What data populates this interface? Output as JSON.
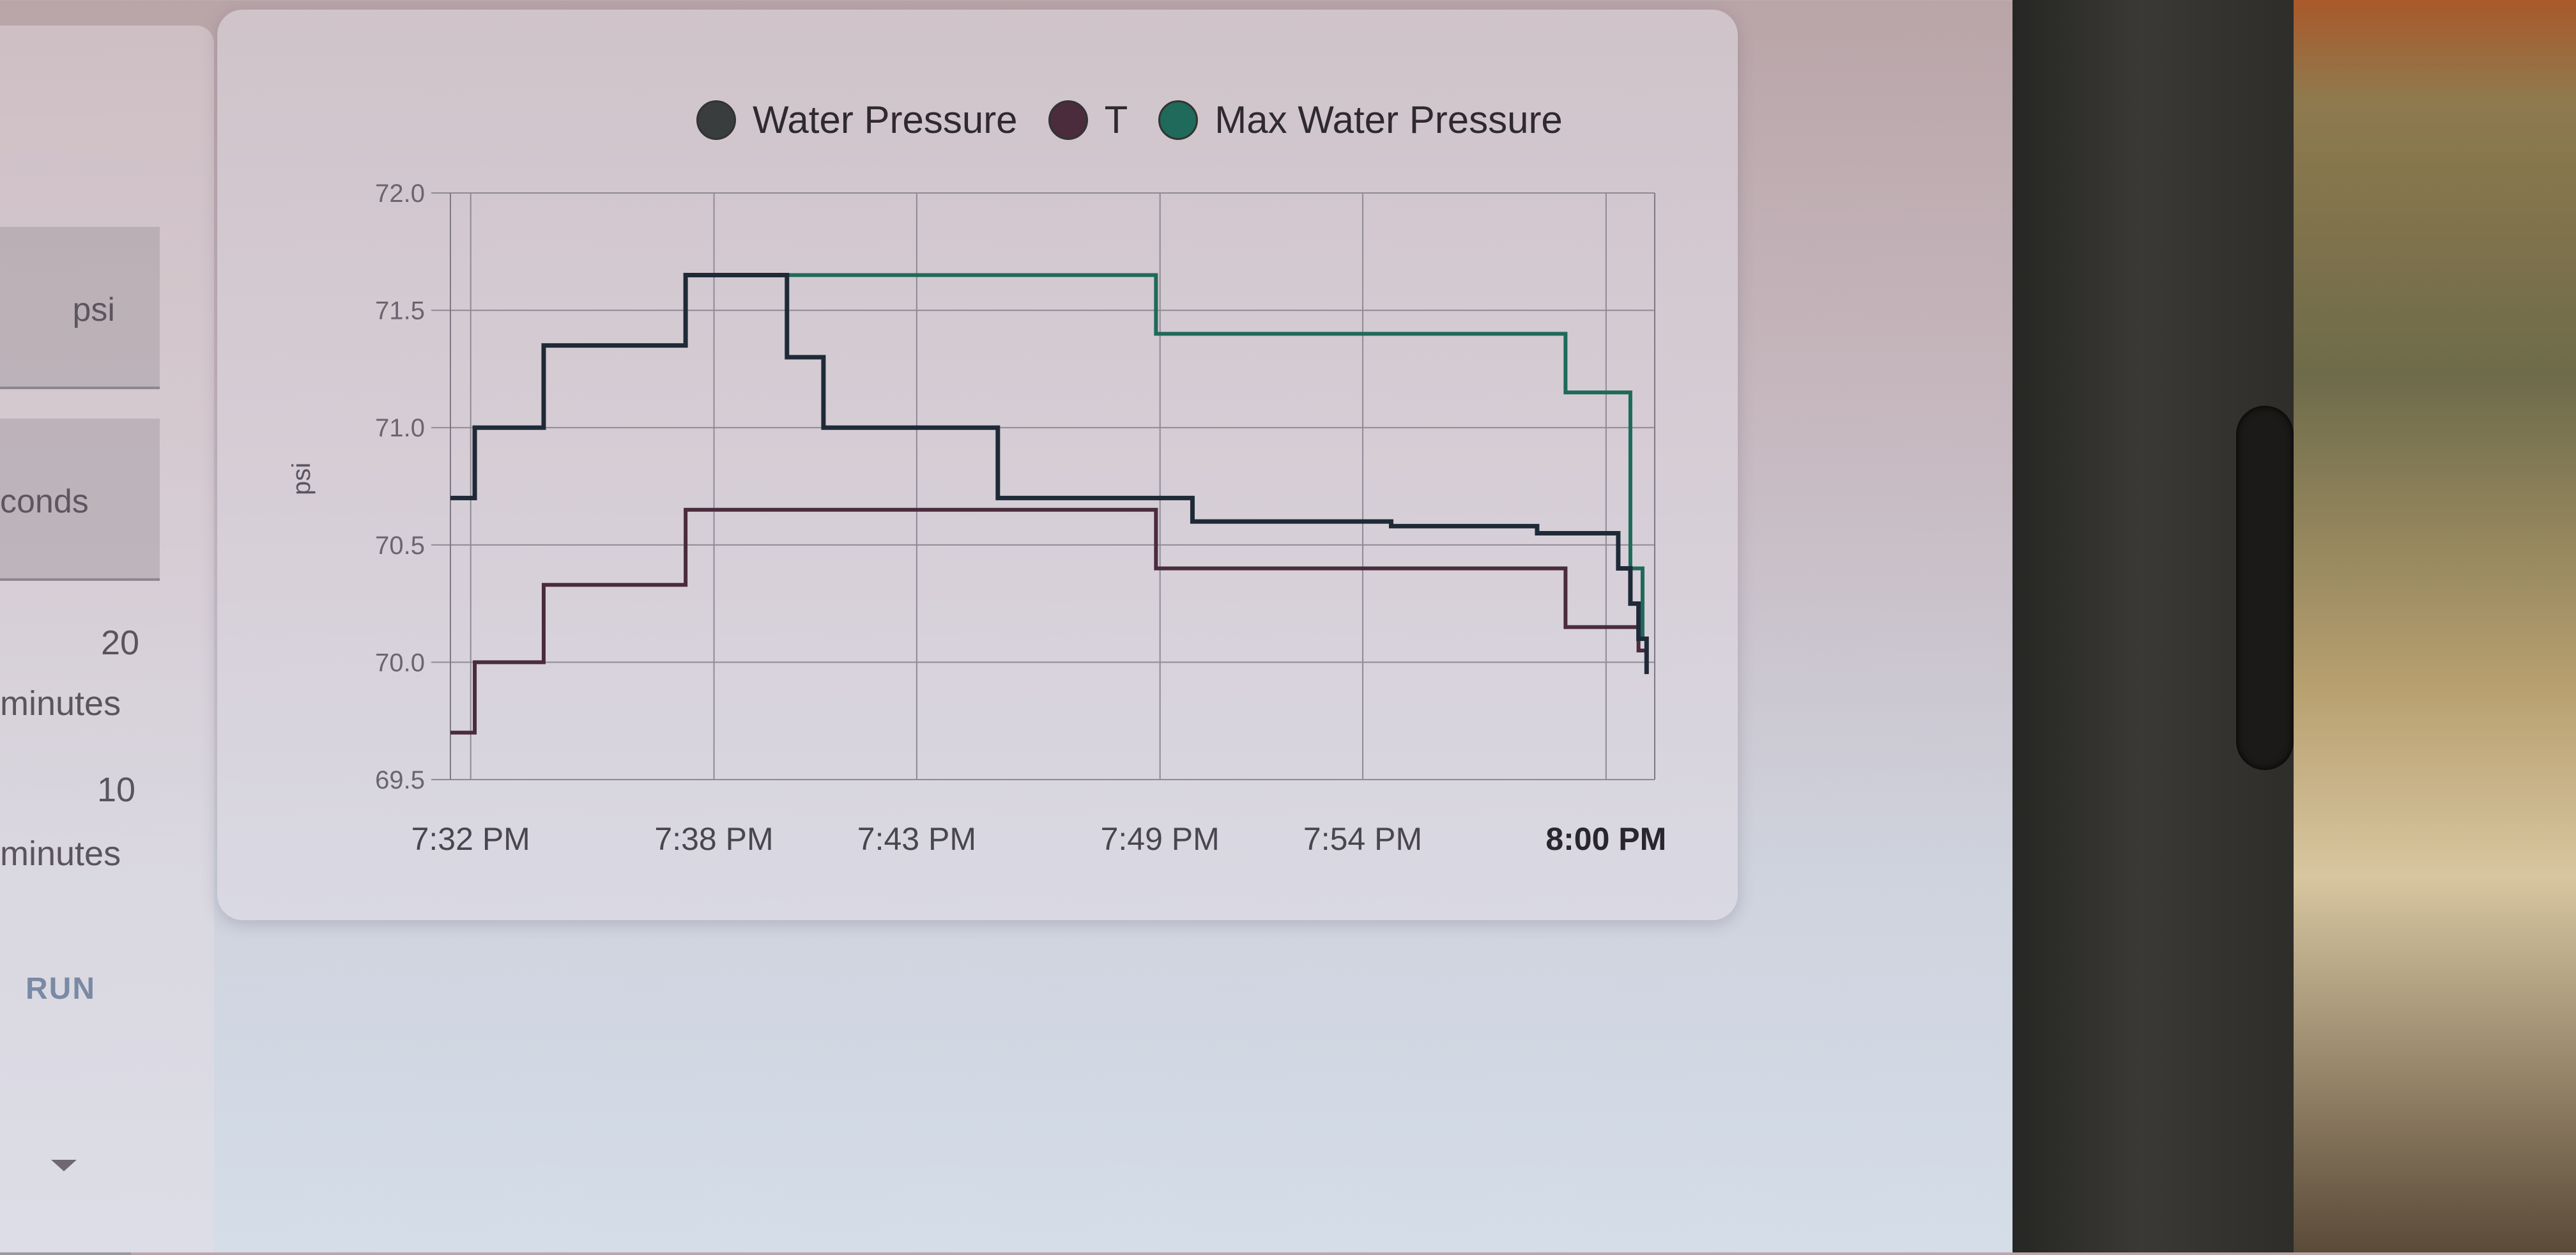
{
  "sidebar": {
    "unit_label": "psi",
    "interval_label": "conds",
    "option_a_value": "20",
    "option_a_unit": "minutes",
    "option_b_value": "10",
    "option_b_unit": "minutes",
    "run_button": "RUN"
  },
  "colors": {
    "water_pressure": "#1f2a38",
    "t": "#4a2c3c",
    "max_water_pressure": "#1f6a5a"
  },
  "chart_data": {
    "type": "line",
    "title": "",
    "xlabel": "",
    "ylabel": "psi",
    "ylim": [
      69.5,
      72.0
    ],
    "yticks": [
      "72.0",
      "71.5",
      "71.0",
      "70.5",
      "70.0",
      "69.5"
    ],
    "xticks": [
      "7:32 PM",
      "7:38 PM",
      "7:43 PM",
      "7:49 PM",
      "7:54 PM",
      "8:00 PM"
    ],
    "xticks_minutes": [
      32,
      38,
      43,
      49,
      54,
      60
    ],
    "xlim_minutes": [
      31.5,
      61.2
    ],
    "series": [
      {
        "name": "Water Pressure",
        "step": true,
        "points": [
          [
            31.5,
            70.7
          ],
          [
            32.1,
            71.0
          ],
          [
            33.8,
            71.35
          ],
          [
            37.3,
            71.65
          ],
          [
            39.8,
            71.3
          ],
          [
            40.7,
            71.0
          ],
          [
            45.0,
            70.7
          ],
          [
            49.8,
            70.6
          ],
          [
            54.7,
            70.58
          ],
          [
            58.3,
            70.55
          ],
          [
            60.3,
            70.4
          ],
          [
            60.6,
            70.25
          ],
          [
            60.8,
            70.1
          ],
          [
            61.0,
            69.95
          ]
        ]
      },
      {
        "name": "T",
        "step": true,
        "points": [
          [
            31.5,
            69.7
          ],
          [
            32.1,
            70.0
          ],
          [
            33.8,
            70.33
          ],
          [
            37.3,
            70.65
          ],
          [
            48.9,
            70.4
          ],
          [
            59.0,
            70.15
          ],
          [
            60.8,
            70.05
          ],
          [
            61.0,
            69.95
          ]
        ]
      },
      {
        "name": "Max Water Pressure",
        "step": true,
        "points": [
          [
            31.5,
            70.7
          ],
          [
            32.1,
            71.0
          ],
          [
            33.8,
            71.35
          ],
          [
            37.3,
            71.65
          ],
          [
            48.9,
            71.4
          ],
          [
            59.0,
            71.15
          ],
          [
            60.6,
            70.4
          ],
          [
            60.9,
            70.1
          ],
          [
            61.0,
            69.95
          ]
        ]
      }
    ],
    "legend_position": "top-center",
    "grid": true
  }
}
